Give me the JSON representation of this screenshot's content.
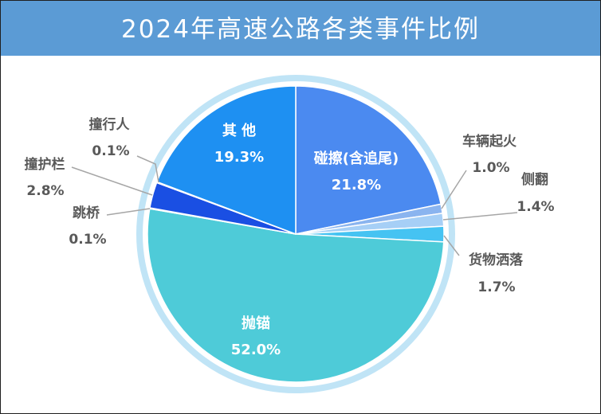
{
  "colors": {
    "header_bg": "#5b9bd5",
    "header_text": "#ffffff",
    "ring": "#c0e4f6",
    "inside_label": "#ffffff",
    "outside_label": "#595959",
    "leader_line": "#a6a6a6"
  },
  "chart_data": {
    "type": "pie",
    "title": "2024年高速公路各类事件比例",
    "start": "top",
    "direction": "clockwise",
    "slices": [
      {
        "label": "碰擦(含追尾)",
        "value": 21.8,
        "value_label": "21.8%",
        "color": "#4b8af0"
      },
      {
        "label": "车辆起火",
        "value": 1.0,
        "value_label": "1.0%",
        "color": "#8ab4ef"
      },
      {
        "label": "侧翻",
        "value": 1.4,
        "value_label": "1.4%",
        "color": "#a6cff6"
      },
      {
        "label": "货物洒落",
        "value": 1.7,
        "value_label": "1.7%",
        "color": "#45c3f2"
      },
      {
        "label": "抛锚",
        "value": 52.0,
        "value_label": "52.0%",
        "color": "#4ecbd8"
      },
      {
        "label": "跳桥",
        "value": 0.1,
        "value_label": "0.1%",
        "color": "#2f66e0"
      },
      {
        "label": "撞护栏",
        "value": 2.8,
        "value_label": "2.8%",
        "color": "#1a4fe3"
      },
      {
        "label": "撞行人",
        "value": 0.1,
        "value_label": "0.1%",
        "color": "#2d6fe8"
      },
      {
        "label": "其 他",
        "value": 19.3,
        "value_label": "19.3%",
        "color": "#1e90f2"
      }
    ]
  }
}
